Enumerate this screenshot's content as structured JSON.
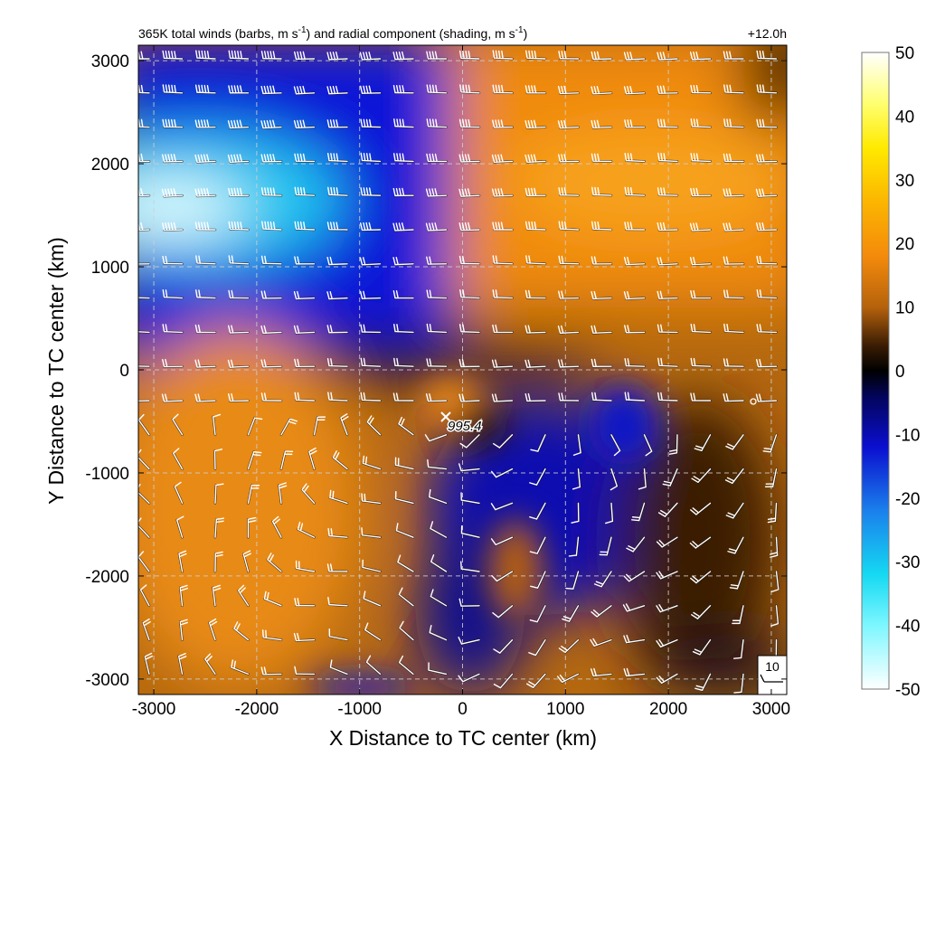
{
  "chart_data": {
    "type": "heatmap",
    "title": "365K total winds (barbs, m s⁻¹) and radial component (shading, m s⁻¹)",
    "title_main": "365K total winds (barbs, m s",
    "title_unit1": "-1",
    "title_mid": ") and radial component (shading, m s",
    "title_unit2": "-1",
    "title_end": ")",
    "forecast_time": "+12.0h",
    "xlabel": "X Distance to TC center (km)",
    "ylabel": "Y Distance to TC center (km)",
    "xlim": [
      -3150,
      3150
    ],
    "ylim": [
      -3150,
      3150
    ],
    "x_ticks": [
      -3000,
      -2000,
      -1000,
      0,
      1000,
      2000,
      3000
    ],
    "y_ticks": [
      -3000,
      -2000,
      -1000,
      0,
      1000,
      2000,
      3000
    ],
    "x_tick_labels": [
      "-3000",
      "-2000",
      "-1000",
      "0",
      "1000",
      "2000",
      "3000"
    ],
    "y_tick_labels": [
      "-3000",
      "-2000",
      "-1000",
      "0",
      "1000",
      "2000",
      "3000"
    ],
    "grid": true,
    "colorbar": {
      "min": -50,
      "max": 50,
      "ticks": [
        50,
        40,
        30,
        20,
        10,
        0,
        -10,
        -20,
        -30,
        -40,
        -50
      ],
      "tick_labels": [
        "50",
        "40",
        "30",
        "20",
        "10",
        "0",
        "-10",
        "-20",
        "-30",
        "-40",
        "-50"
      ],
      "stops": [
        {
          "value": -50,
          "color": "#ffffff"
        },
        {
          "value": -40,
          "color": "#7df7ff"
        },
        {
          "value": -32,
          "color": "#15d9f2"
        },
        {
          "value": -22,
          "color": "#1a80ec"
        },
        {
          "value": -12,
          "color": "#0b0fcf"
        },
        {
          "value": -4,
          "color": "#03045a"
        },
        {
          "value": 0,
          "color": "#000000"
        },
        {
          "value": 4,
          "color": "#3b1d03"
        },
        {
          "value": 10,
          "color": "#b5620c"
        },
        {
          "value": 18,
          "color": "#f48a0b"
        },
        {
          "value": 27,
          "color": "#fcb800"
        },
        {
          "value": 35,
          "color": "#ffea00"
        },
        {
          "value": 42,
          "color": "#ffff70"
        },
        {
          "value": 50,
          "color": "#ffffff"
        }
      ]
    },
    "fields": [
      {
        "region": "north-west inflow maximum",
        "x": -2600,
        "y": 1600,
        "value": -42
      },
      {
        "region": "north-central inflow",
        "x": -1000,
        "y": 1400,
        "value": -20
      },
      {
        "region": "north-east outflow",
        "x": 1500,
        "y": 2000,
        "value": 18
      },
      {
        "region": "south-west outflow",
        "x": -2000,
        "y": -1500,
        "value": 15
      },
      {
        "region": "south-central inflow",
        "x": 500,
        "y": -1200,
        "value": -12
      },
      {
        "region": "east weak flow",
        "x": 2500,
        "y": -800,
        "value": 4
      }
    ],
    "center_marker": {
      "x": -200,
      "y": -500,
      "label": "995.4"
    },
    "small_circle": {
      "x": 2800,
      "y": -300
    },
    "reference_barb": {
      "label": "10",
      "speed": 10
    }
  }
}
